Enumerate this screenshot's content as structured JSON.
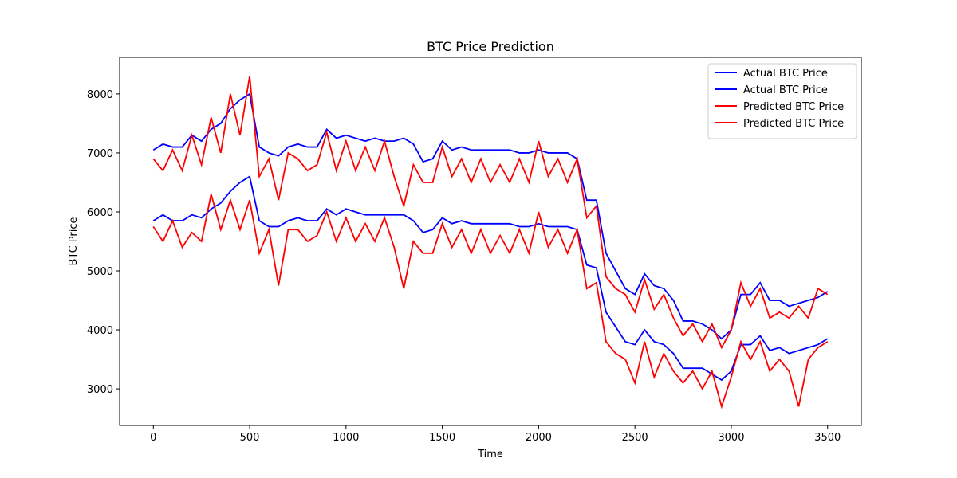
{
  "chart_data": {
    "type": "line",
    "title": "BTC Price Prediction",
    "x_label": "Time",
    "y_label": "BTC Price",
    "x": [
      0,
      50,
      100,
      150,
      200,
      250,
      300,
      350,
      400,
      450,
      500,
      550,
      600,
      650,
      700,
      750,
      800,
      850,
      900,
      950,
      1000,
      1050,
      1100,
      1150,
      1200,
      1250,
      1300,
      1350,
      1400,
      1450,
      1500,
      1550,
      1600,
      1650,
      1700,
      1750,
      1800,
      1850,
      1900,
      1950,
      2000,
      2050,
      2100,
      2150,
      2200,
      2250,
      2300,
      2350,
      2400,
      2450,
      2500,
      2550,
      2600,
      2650,
      2700,
      2750,
      2800,
      2850,
      2900,
      2950,
      3000,
      3050,
      3100,
      3150,
      3200,
      3250,
      3300,
      3350,
      3400,
      3450,
      3500
    ],
    "series": [
      {
        "name": "Actual BTC Price",
        "color": "#0000ff",
        "values": [
          7050,
          7150,
          7100,
          7100,
          7300,
          7200,
          7400,
          7500,
          7750,
          7900,
          8000,
          7100,
          7000,
          6950,
          7100,
          7150,
          7100,
          7100,
          7400,
          7250,
          7300,
          7250,
          7200,
          7250,
          7200,
          7200,
          7250,
          7150,
          6850,
          6900,
          7200,
          7050,
          7100,
          7050,
          7050,
          7050,
          7050,
          7050,
          7000,
          7000,
          7050,
          7000,
          7000,
          7000,
          6900,
          6200,
          6200,
          5300,
          5000,
          4700,
          4600,
          4950,
          4750,
          4700,
          4500,
          4150,
          4150,
          4100,
          4000,
          3850,
          4000,
          4600,
          4600,
          4800,
          4500,
          4500,
          4400,
          4450,
          4500,
          4550,
          4650
        ]
      },
      {
        "name": "Actual BTC Price",
        "color": "#0000ff",
        "values": [
          5850,
          5950,
          5850,
          5850,
          5950,
          5900,
          6050,
          6150,
          6350,
          6500,
          6600,
          5850,
          5750,
          5750,
          5850,
          5900,
          5850,
          5850,
          6050,
          5950,
          6050,
          6000,
          5950,
          5950,
          5950,
          5950,
          5950,
          5850,
          5650,
          5700,
          5900,
          5800,
          5850,
          5800,
          5800,
          5800,
          5800,
          5800,
          5750,
          5750,
          5800,
          5750,
          5750,
          5750,
          5700,
          5100,
          5050,
          4300,
          4050,
          3800,
          3750,
          4000,
          3800,
          3750,
          3600,
          3350,
          3350,
          3350,
          3250,
          3150,
          3300,
          3750,
          3750,
          3900,
          3650,
          3700,
          3600,
          3650,
          3700,
          3750,
          3850
        ]
      },
      {
        "name": "Predicted BTC Price",
        "color": "#ff0000",
        "values": [
          6900,
          6700,
          7050,
          6700,
          7300,
          6800,
          7600,
          7000,
          8000,
          7300,
          8300,
          6600,
          6900,
          6200,
          7000,
          6900,
          6700,
          6800,
          7350,
          6700,
          7200,
          6700,
          7100,
          6700,
          7200,
          6600,
          6100,
          6800,
          6500,
          6500,
          7100,
          6600,
          6900,
          6500,
          6900,
          6500,
          6800,
          6500,
          6900,
          6500,
          7200,
          6600,
          6900,
          6500,
          6900,
          5900,
          6100,
          4900,
          4700,
          4600,
          4300,
          4850,
          4350,
          4600,
          4200,
          3900,
          4100,
          3800,
          4100,
          3700,
          4000,
          4800,
          4400,
          4700,
          4200,
          4300,
          4200,
          4400,
          4200,
          4700,
          4600
        ]
      },
      {
        "name": "Predicted BTC Price",
        "color": "#ff0000",
        "values": [
          5750,
          5500,
          5850,
          5400,
          5650,
          5500,
          6300,
          5700,
          6200,
          5700,
          6200,
          5300,
          5700,
          4750,
          5700,
          5700,
          5500,
          5600,
          6000,
          5500,
          5900,
          5500,
          5800,
          5500,
          5900,
          5400,
          4700,
          5500,
          5300,
          5300,
          5800,
          5400,
          5700,
          5300,
          5700,
          5300,
          5600,
          5300,
          5700,
          5300,
          6000,
          5400,
          5700,
          5300,
          5700,
          4700,
          4800,
          3800,
          3600,
          3500,
          3100,
          3800,
          3200,
          3600,
          3300,
          3100,
          3300,
          3000,
          3300,
          2700,
          3200,
          3800,
          3500,
          3800,
          3300,
          3500,
          3300,
          2700,
          3500,
          3700,
          3800
        ]
      }
    ],
    "xlim": [
      -175,
      3675
    ],
    "ylim": [
      2380,
      8620
    ],
    "xticks": [
      0,
      500,
      1000,
      1500,
      2000,
      2500,
      3000,
      3500
    ],
    "yticks": [
      3000,
      4000,
      5000,
      6000,
      7000,
      8000
    ],
    "legend": "upper right"
  }
}
